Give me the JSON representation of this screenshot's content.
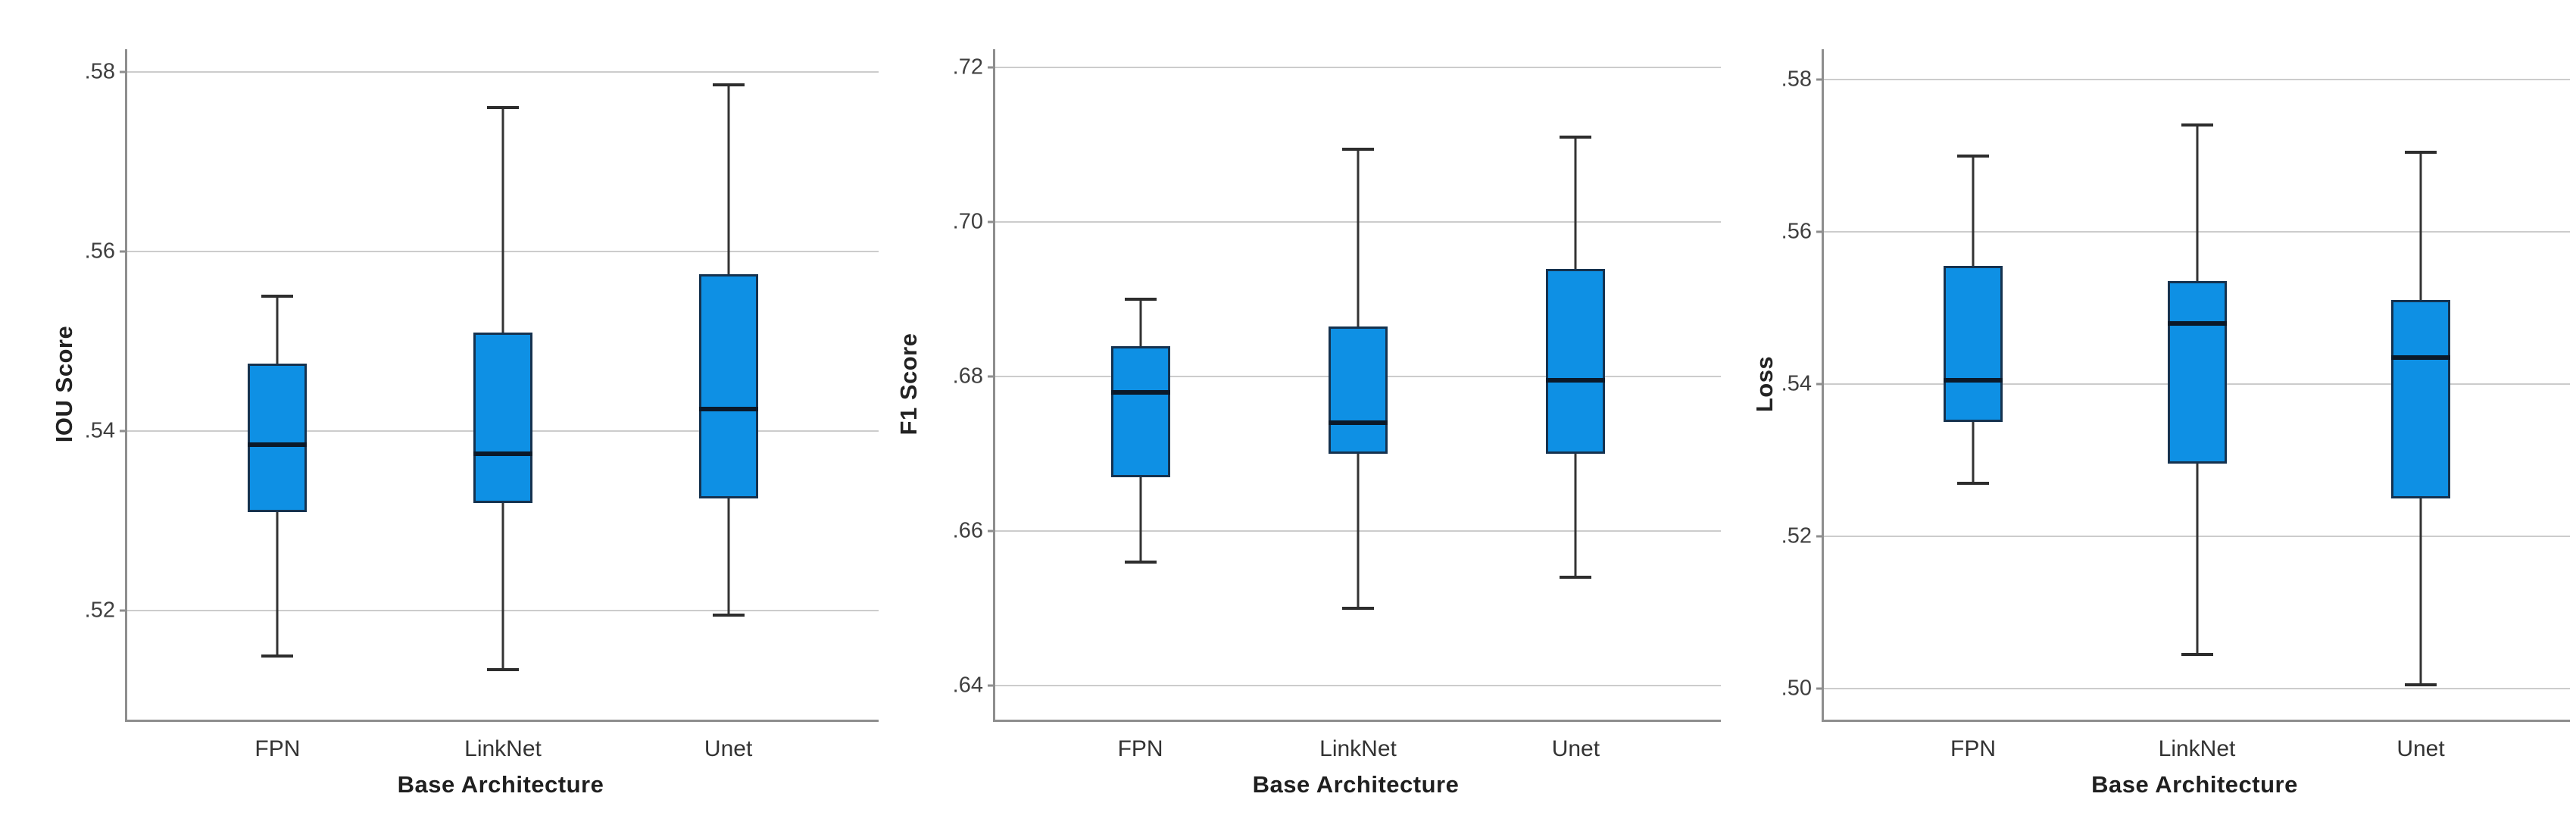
{
  "figure": {
    "description": "Three side-by-side box plots comparing segmentation base architectures",
    "background": "#ffffff"
  },
  "style": {
    "box_fill": "#0e90e4",
    "box_border": "#15324f",
    "median_color": "#0b1929",
    "whisker_color": "#333333",
    "gridline_color": "#cccccc",
    "axis_color": "#8e8e8e",
    "tick_text_color": "#3f3f3f",
    "label_text_color": "#1f1f1f"
  },
  "chart_data": [
    {
      "type": "box",
      "title": "",
      "ylabel": "IOU Score",
      "xlabel": "Base Architecture",
      "categories": [
        "FPN",
        "LinkNet",
        "Unet"
      ],
      "x_positions_pct": [
        20,
        50,
        80
      ],
      "yticks": [
        0.52,
        0.54,
        0.56,
        0.58
      ],
      "ytick_labels": [
        ".52",
        ".54",
        ".56",
        ".58"
      ],
      "ylim": [
        0.5079,
        0.5825
      ],
      "grid": true,
      "boxes": [
        {
          "category": "FPN",
          "whisker_low": 0.515,
          "q1": 0.531,
          "median": 0.5385,
          "q3": 0.5475,
          "whisker_high": 0.555
        },
        {
          "category": "LinkNet",
          "whisker_low": 0.5135,
          "q1": 0.532,
          "median": 0.5375,
          "q3": 0.551,
          "whisker_high": 0.576
        },
        {
          "category": "Unet",
          "whisker_low": 0.5195,
          "q1": 0.5325,
          "median": 0.5425,
          "q3": 0.5575,
          "whisker_high": 0.5785
        }
      ]
    },
    {
      "type": "box",
      "title": "",
      "ylabel": "F1 Score",
      "xlabel": "Base Architecture",
      "categories": [
        "FPN",
        "LinkNet",
        "Unet"
      ],
      "x_positions_pct": [
        20,
        50,
        80
      ],
      "yticks": [
        0.64,
        0.66,
        0.68,
        0.7,
        0.72
      ],
      "ytick_labels": [
        ".64",
        ".66",
        ".68",
        ".70",
        ".72"
      ],
      "ylim": [
        0.6356,
        0.7224
      ],
      "grid": true,
      "boxes": [
        {
          "category": "FPN",
          "whisker_low": 0.656,
          "q1": 0.667,
          "median": 0.678,
          "q3": 0.684,
          "whisker_high": 0.69
        },
        {
          "category": "LinkNet",
          "whisker_low": 0.65,
          "q1": 0.67,
          "median": 0.674,
          "q3": 0.6865,
          "whisker_high": 0.7095
        },
        {
          "category": "Unet",
          "whisker_low": 0.654,
          "q1": 0.67,
          "median": 0.6795,
          "q3": 0.694,
          "whisker_high": 0.711
        }
      ]
    },
    {
      "type": "box",
      "title": "",
      "ylabel": "Loss",
      "xlabel": "Base Architecture",
      "categories": [
        "FPN",
        "LinkNet",
        "Unet"
      ],
      "x_positions_pct": [
        20,
        50,
        80
      ],
      "yticks": [
        0.5,
        0.52,
        0.54,
        0.56,
        0.58
      ],
      "ytick_labels": [
        ".50",
        ".52",
        ".54",
        ".56",
        ".58"
      ],
      "ylim": [
        0.4959,
        0.584
      ],
      "grid": true,
      "boxes": [
        {
          "category": "FPN",
          "whisker_low": 0.527,
          "q1": 0.535,
          "median": 0.5405,
          "q3": 0.5555,
          "whisker_high": 0.57
        },
        {
          "category": "LinkNet",
          "whisker_low": 0.5045,
          "q1": 0.5295,
          "median": 0.548,
          "q3": 0.5535,
          "whisker_high": 0.574
        },
        {
          "category": "Unet",
          "whisker_low": 0.5005,
          "q1": 0.525,
          "median": 0.5435,
          "q3": 0.551,
          "whisker_high": 0.5705
        }
      ]
    }
  ]
}
